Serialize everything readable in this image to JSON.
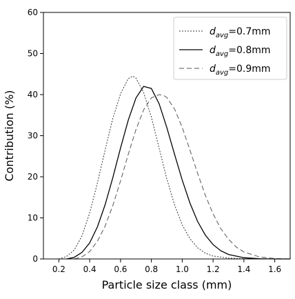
{
  "chart_data": {
    "type": "line",
    "xlabel": "Particle size class (mm)",
    "ylabel": "Contribution (%)",
    "xlim": [
      0.1,
      1.7
    ],
    "ylim": [
      0,
      60
    ],
    "x_ticks": [
      "0.2",
      "0.4",
      "0.6",
      "0.8",
      "1.0",
      "1.2",
      "1.4",
      "1.6"
    ],
    "y_ticks": [
      "0",
      "10",
      "20",
      "30",
      "40",
      "50",
      "60"
    ],
    "grid": false,
    "legend_position": "top-right",
    "series": [
      {
        "name": "0.7mm",
        "line_style": "dotted",
        "color": "#333333",
        "x": [
          0.2,
          0.25,
          0.3,
          0.35,
          0.4,
          0.45,
          0.5,
          0.55,
          0.6,
          0.65,
          0.68,
          0.7,
          0.75,
          0.8,
          0.85,
          0.9,
          0.95,
          1.0,
          1.05,
          1.1,
          1.15,
          1.2,
          1.3,
          1.4,
          1.5,
          1.6,
          1.7
        ],
        "y": [
          0,
          0.6,
          2.2,
          5.6,
          11.2,
          18.5,
          26.5,
          34.2,
          40.2,
          43.9,
          44.5,
          44.0,
          40.5,
          34.5,
          27.0,
          19.5,
          13.2,
          8.3,
          4.9,
          2.7,
          1.4,
          0.7,
          0.2,
          0.05,
          0,
          0,
          0
        ]
      },
      {
        "name": "0.8mm",
        "line_style": "solid",
        "color": "#000000",
        "x": [
          0.25,
          0.3,
          0.35,
          0.4,
          0.45,
          0.5,
          0.55,
          0.6,
          0.65,
          0.7,
          0.75,
          0.8,
          0.85,
          0.9,
          0.95,
          1.0,
          1.05,
          1.1,
          1.15,
          1.2,
          1.25,
          1.3,
          1.4,
          1.5,
          1.6,
          1.7
        ],
        "y": [
          0,
          0.4,
          1.6,
          3.9,
          7.8,
          13.2,
          19.8,
          27.0,
          33.8,
          39.2,
          42.0,
          41.5,
          37.8,
          32.0,
          25.5,
          19.2,
          13.6,
          9.1,
          5.8,
          3.5,
          2.0,
          1.1,
          0.3,
          0.05,
          0,
          0
        ]
      },
      {
        "name": "0.9mm",
        "line_style": "dashed",
        "color": "#555555",
        "x": [
          0.3,
          0.35,
          0.4,
          0.45,
          0.5,
          0.55,
          0.6,
          0.65,
          0.7,
          0.75,
          0.8,
          0.85,
          0.88,
          0.9,
          0.95,
          1.0,
          1.05,
          1.1,
          1.15,
          1.2,
          1.25,
          1.3,
          1.35,
          1.4,
          1.5,
          1.6,
          1.7
        ],
        "y": [
          0,
          0.5,
          1.8,
          4.3,
          8.0,
          13.0,
          19.0,
          25.5,
          31.5,
          36.3,
          39.2,
          40.0,
          39.8,
          39.3,
          36.5,
          32.0,
          26.5,
          20.8,
          15.5,
          11.0,
          7.4,
          4.8,
          2.9,
          1.7,
          0.5,
          0.1,
          0
        ]
      }
    ]
  }
}
